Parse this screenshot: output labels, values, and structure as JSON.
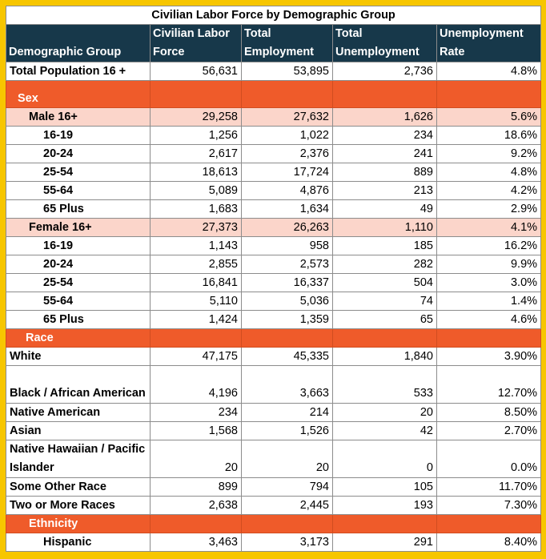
{
  "title": "Civilian Labor Force by Demographic Group",
  "headers": {
    "group": "Demographic Group",
    "labor_force": "Civilian Labor Force",
    "employment": "Total Employment",
    "unemployment": "Total Unemployment",
    "rate": "Unemployment Rate"
  },
  "total": {
    "label": "Total Population 16 +",
    "labor_force": "56,631",
    "employment": "53,895",
    "unemployment": "2,736",
    "rate": "4.8%"
  },
  "sex_section": "Sex",
  "male": {
    "label": "Male 16+",
    "labor_force": "29,258",
    "employment": "27,632",
    "unemployment": "1,626",
    "rate": "5.6%",
    "rows": [
      {
        "label": "16-19",
        "labor_force": "1,256",
        "employment": "1,022",
        "unemployment": "234",
        "rate": "18.6%"
      },
      {
        "label": "20-24",
        "labor_force": "2,617",
        "employment": "2,376",
        "unemployment": "241",
        "rate": "9.2%"
      },
      {
        "label": "25-54",
        "labor_force": "18,613",
        "employment": "17,724",
        "unemployment": "889",
        "rate": "4.8%"
      },
      {
        "label": "55-64",
        "labor_force": "5,089",
        "employment": "4,876",
        "unemployment": "213",
        "rate": "4.2%"
      },
      {
        "label": "65 Plus",
        "labor_force": "1,683",
        "employment": "1,634",
        "unemployment": "49",
        "rate": "2.9%"
      }
    ]
  },
  "female": {
    "label": "Female 16+",
    "labor_force": "27,373",
    "employment": "26,263",
    "unemployment": "1,110",
    "rate": "4.1%",
    "rows": [
      {
        "label": "16-19",
        "labor_force": "1,143",
        "employment": "958",
        "unemployment": "185",
        "rate": "16.2%"
      },
      {
        "label": "20-24",
        "labor_force": "2,855",
        "employment": "2,573",
        "unemployment": "282",
        "rate": "9.9%"
      },
      {
        "label": "25-54",
        "labor_force": "16,841",
        "employment": "16,337",
        "unemployment": "504",
        "rate": "3.0%"
      },
      {
        "label": "55-64",
        "labor_force": "5,110",
        "employment": "5,036",
        "unemployment": "74",
        "rate": "1.4%"
      },
      {
        "label": "65 Plus",
        "labor_force": "1,424",
        "employment": "1,359",
        "unemployment": "65",
        "rate": "4.6%"
      }
    ]
  },
  "race_section": "Race",
  "race_rows": [
    {
      "label": "White",
      "labor_force": "47,175",
      "employment": "45,335",
      "unemployment": "1,840",
      "rate": "3.90%"
    },
    {
      "label": "Black / African American",
      "labor_force": "4,196",
      "employment": "3,663",
      "unemployment": "533",
      "rate": "12.70%"
    },
    {
      "label": "Native American",
      "labor_force": "234",
      "employment": "214",
      "unemployment": "20",
      "rate": "8.50%"
    },
    {
      "label": "Asian",
      "labor_force": "1,568",
      "employment": "1,526",
      "unemployment": "42",
      "rate": "2.70%"
    },
    {
      "label": "Native Hawaiian / Pacific Islander",
      "labor_force": "20",
      "employment": "20",
      "unemployment": "0",
      "rate": "0.0%"
    },
    {
      "label": "Some Other Race",
      "labor_force": "899",
      "employment": "794",
      "unemployment": "105",
      "rate": "11.70%"
    },
    {
      "label": "Two or More Races",
      "labor_force": "2,638",
      "employment": "2,445",
      "unemployment": "193",
      "rate": "7.30%"
    }
  ],
  "ethnicity_section": "Ethnicity",
  "hispanic": {
    "label": "Hispanic",
    "labor_force": "3,463",
    "employment": "3,173",
    "unemployment": "291",
    "rate": "8.40%"
  }
}
